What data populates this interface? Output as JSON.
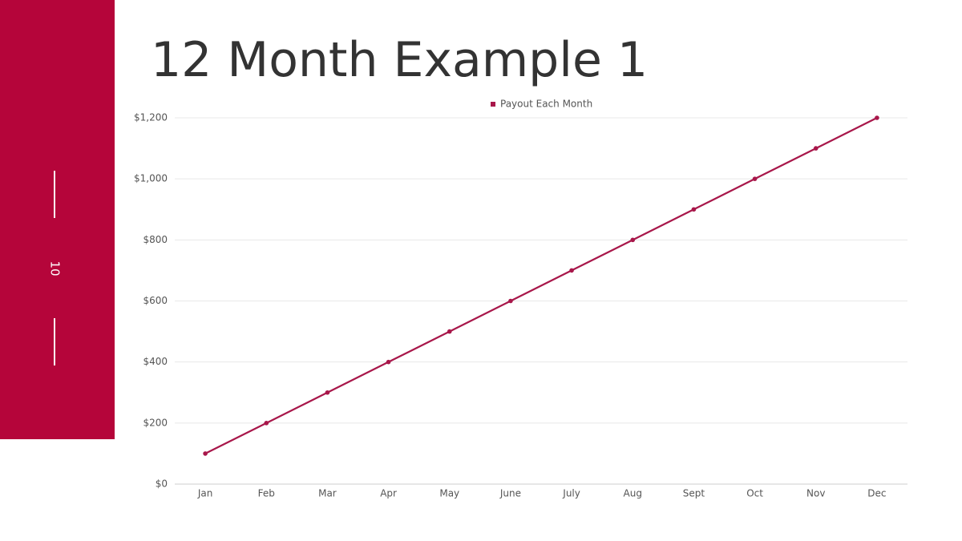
{
  "page_number": "10",
  "chart_data": {
    "type": "line",
    "title": "12 Month Example 1",
    "categories": [
      "Jan",
      "Feb",
      "Mar",
      "Apr",
      "May",
      "June",
      "July",
      "Aug",
      "Sept",
      "Oct",
      "Nov",
      "Dec"
    ],
    "series": [
      {
        "name": "Payout Each Month",
        "color": "#a8174a",
        "values": [
          100,
          200,
          300,
          400,
          500,
          600,
          700,
          800,
          900,
          1000,
          1100,
          1200
        ]
      }
    ],
    "ylim": [
      0,
      1200
    ],
    "yticks": [
      {
        "value": 0,
        "label": "$0"
      },
      {
        "value": 200,
        "label": "$200"
      },
      {
        "value": 400,
        "label": "$400"
      },
      {
        "value": 600,
        "label": "$600"
      },
      {
        "value": 800,
        "label": "$800"
      },
      {
        "value": 1000,
        "label": "$1,000"
      },
      {
        "value": 1200,
        "label": "$1,200"
      }
    ],
    "grid": true,
    "legend": "top"
  }
}
